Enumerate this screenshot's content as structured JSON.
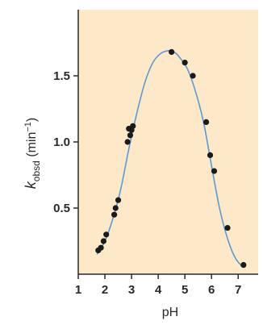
{
  "chart_data": {
    "type": "scatter",
    "xlabel": "pH",
    "ylabel": {
      "symbol": "k",
      "subscript": "obsd",
      "unit_open": " (min",
      "unit_exp": "−1",
      "unit_close": ")"
    },
    "xlim": [
      1,
      7.75
    ],
    "ylim": [
      0,
      2.0
    ],
    "x_ticks": [
      1,
      2,
      3,
      4,
      5,
      6,
      7
    ],
    "y_ticks": [
      0.5,
      1.0,
      1.5
    ],
    "y_tick_labels": [
      "0.5",
      "1.0",
      "1.5"
    ],
    "colors": {
      "plot_background": "#fde8c8",
      "curve": "#5b9bd5",
      "points": "#1a1a1a",
      "axis": "#2a2a2a"
    },
    "series": [
      {
        "kind": "points",
        "x": [
          1.75,
          1.85,
          1.95,
          2.05,
          2.35,
          2.4,
          2.5,
          2.85,
          2.9,
          2.95,
          3.0,
          3.05,
          4.5,
          5.0,
          5.3,
          5.8,
          5.95,
          6.1,
          6.6,
          7.2
        ],
        "y": [
          0.18,
          0.2,
          0.25,
          0.3,
          0.45,
          0.5,
          0.56,
          1.0,
          1.1,
          1.05,
          1.09,
          1.12,
          1.68,
          1.6,
          1.5,
          1.15,
          0.9,
          0.78,
          0.35,
          0.07
        ]
      },
      {
        "kind": "fit_curve",
        "x": [
          1.7,
          2.0,
          2.3,
          2.6,
          2.9,
          3.2,
          3.5,
          3.8,
          4.1,
          4.4,
          4.6,
          4.8,
          5.1,
          5.4,
          5.7,
          6.0,
          6.3,
          6.6,
          6.9,
          7.2
        ],
        "y": [
          0.15,
          0.25,
          0.42,
          0.65,
          0.95,
          1.22,
          1.45,
          1.6,
          1.67,
          1.69,
          1.68,
          1.64,
          1.55,
          1.38,
          1.15,
          0.82,
          0.5,
          0.27,
          0.12,
          0.05
        ]
      }
    ]
  }
}
